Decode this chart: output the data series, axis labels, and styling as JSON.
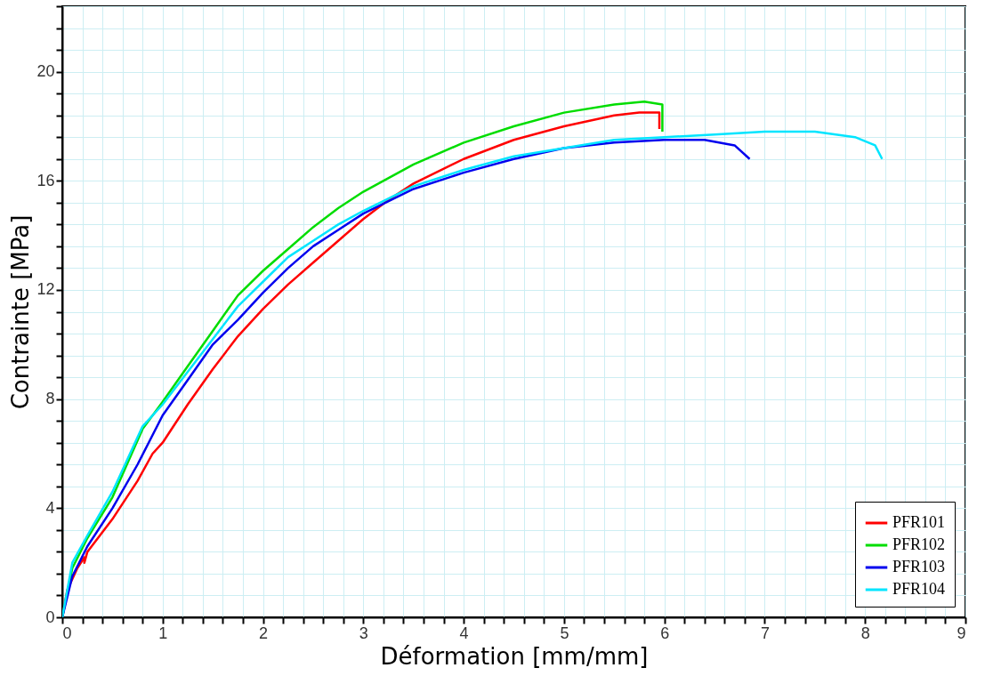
{
  "chart_data": {
    "type": "line",
    "xlabel": "Déformation [mm/mm]",
    "ylabel": "Contrainte [MPa]",
    "xlim": [
      0,
      9
    ],
    "ylim": [
      0,
      22.4
    ],
    "xticks": [
      0,
      {
        "value": 0.2,
        "label": null
      },
      {
        "value": 0.4,
        "label": null
      },
      {
        "value": 0.6,
        "label": null
      },
      {
        "value": 0.8,
        "label": null
      },
      1,
      {
        "value": 1.2,
        "label": null
      },
      {
        "value": 1.4,
        "label": null
      },
      {
        "value": 1.6,
        "label": null
      },
      {
        "value": 1.8,
        "label": null
      },
      2,
      {
        "value": 2.2,
        "label": null
      },
      {
        "value": 2.4,
        "label": null
      },
      {
        "value": 2.6,
        "label": null
      },
      {
        "value": 2.8,
        "label": null
      },
      3,
      {
        "value": 3.2,
        "label": null
      },
      {
        "value": 3.4,
        "label": null
      },
      {
        "value": 3.6,
        "label": null
      },
      {
        "value": 3.8,
        "label": null
      },
      4,
      {
        "value": 4.2,
        "label": null
      },
      {
        "value": 4.4,
        "label": null
      },
      {
        "value": 4.6,
        "label": null
      },
      {
        "value": 4.8,
        "label": null
      },
      5,
      {
        "value": 5.2,
        "label": null
      },
      {
        "value": 5.4,
        "label": null
      },
      {
        "value": 5.6,
        "label": null
      },
      {
        "value": 5.8,
        "label": null
      },
      6,
      {
        "value": 6.2,
        "label": null
      },
      {
        "value": 6.4,
        "label": null
      },
      {
        "value": 6.6,
        "label": null
      },
      {
        "value": 6.8,
        "label": null
      },
      7,
      {
        "value": 7.2,
        "label": null
      },
      {
        "value": 7.4,
        "label": null
      },
      {
        "value": 7.6,
        "label": null
      },
      {
        "value": 7.8,
        "label": null
      },
      8,
      {
        "value": 8.2,
        "label": null
      },
      {
        "value": 8.4,
        "label": null
      },
      {
        "value": 8.6,
        "label": null
      },
      {
        "value": 8.8,
        "label": null
      },
      9
    ],
    "yticks": [
      0,
      {
        "value": 0.8,
        "label": null
      },
      {
        "value": 1.6,
        "label": null
      },
      {
        "value": 2.4,
        "label": null
      },
      {
        "value": 3.2,
        "label": null
      },
      4,
      {
        "value": 4.8,
        "label": null
      },
      {
        "value": 5.6,
        "label": null
      },
      {
        "value": 6.4,
        "label": null
      },
      {
        "value": 7.2,
        "label": null
      },
      8,
      {
        "value": 8.8,
        "label": null
      },
      {
        "value": 9.6,
        "label": null
      },
      {
        "value": 10.4,
        "label": null
      },
      {
        "value": 11.2,
        "label": null
      },
      12,
      {
        "value": 12.8,
        "label": null
      },
      {
        "value": 13.6,
        "label": null
      },
      {
        "value": 14.4,
        "label": null
      },
      {
        "value": 15.2,
        "label": null
      },
      16,
      {
        "value": 16.8,
        "label": null
      },
      {
        "value": 17.6,
        "label": null
      },
      {
        "value": 18.4,
        "label": null
      },
      {
        "value": 19.2,
        "label": null
      },
      20,
      {
        "value": 20.8,
        "label": null
      },
      {
        "value": 21.6,
        "label": null
      },
      {
        "value": 22.4,
        "label": null
      }
    ],
    "grid": true,
    "legend": "bottom right",
    "marker": "none",
    "line_style": "solid",
    "series": [
      {
        "name": "PFR101",
        "color": "#ff0000",
        "x": [
          0,
          0.05,
          0.15,
          0.22,
          0.22,
          0.25,
          0.5,
          0.75,
          0.9,
          1.0,
          1.25,
          1.5,
          1.75,
          2.0,
          2.25,
          2.5,
          2.75,
          3.0,
          3.25,
          3.5,
          4.0,
          4.5,
          5.0,
          5.5,
          5.75,
          5.95,
          5.95
        ],
        "values": [
          0,
          1.0,
          1.8,
          2.2,
          2.0,
          2.4,
          3.6,
          5.0,
          6.0,
          6.4,
          7.8,
          9.1,
          10.3,
          11.3,
          12.2,
          13.0,
          13.8,
          14.6,
          15.3,
          15.9,
          16.8,
          17.5,
          18.0,
          18.4,
          18.5,
          18.5,
          17.9
        ]
      },
      {
        "name": "PFR102",
        "color": "#00dd00",
        "x": [
          0,
          0.1,
          0.25,
          0.5,
          0.8,
          1.0,
          1.25,
          1.5,
          1.75,
          2.0,
          2.25,
          2.5,
          2.75,
          3.0,
          3.5,
          4.0,
          4.5,
          5.0,
          5.5,
          5.8,
          5.98,
          5.98
        ],
        "values": [
          0,
          1.8,
          2.9,
          4.4,
          6.9,
          7.9,
          9.2,
          10.5,
          11.8,
          12.7,
          13.5,
          14.3,
          15.0,
          15.6,
          16.6,
          17.4,
          18.0,
          18.5,
          18.8,
          18.9,
          18.8,
          17.8
        ]
      },
      {
        "name": "PFR103",
        "color": "#0000ee",
        "x": [
          0,
          0.1,
          0.25,
          0.5,
          0.75,
          1.0,
          1.25,
          1.5,
          1.75,
          2.0,
          2.25,
          2.5,
          2.75,
          3.0,
          3.5,
          4.0,
          4.5,
          5.0,
          5.5,
          6.0,
          6.4,
          6.7,
          6.85
        ],
        "values": [
          0,
          1.5,
          2.6,
          4.0,
          5.6,
          7.4,
          8.7,
          10.0,
          10.9,
          11.9,
          12.8,
          13.6,
          14.2,
          14.8,
          15.7,
          16.3,
          16.8,
          17.2,
          17.4,
          17.5,
          17.5,
          17.3,
          16.8
        ]
      },
      {
        "name": "PFR104",
        "color": "#00e5ff",
        "x": [
          0,
          0.1,
          0.25,
          0.5,
          0.8,
          1.0,
          1.25,
          1.5,
          1.75,
          2.0,
          2.25,
          2.5,
          2.75,
          3.0,
          3.5,
          4.0,
          4.5,
          5.0,
          5.5,
          6.0,
          6.5,
          7.0,
          7.5,
          7.9,
          8.1,
          8.17
        ],
        "values": [
          0,
          2.0,
          3.0,
          4.6,
          7.0,
          7.8,
          9.0,
          10.2,
          11.4,
          12.3,
          13.2,
          13.8,
          14.4,
          14.9,
          15.8,
          16.4,
          16.9,
          17.2,
          17.5,
          17.6,
          17.7,
          17.8,
          17.8,
          17.6,
          17.3,
          16.8
        ]
      }
    ]
  }
}
